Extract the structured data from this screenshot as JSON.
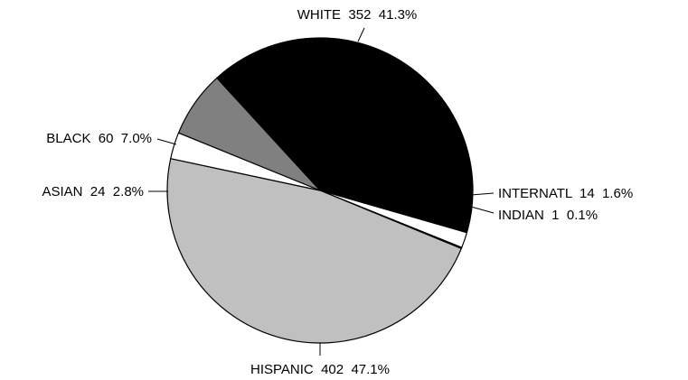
{
  "chart_data": {
    "type": "pie",
    "title": "",
    "slices": [
      {
        "category": "WHITE",
        "count": 352,
        "percent": "41.3%",
        "color": "#000000"
      },
      {
        "category": "INTERNATL",
        "count": 14,
        "percent": "1.6%",
        "color": "#ffffff"
      },
      {
        "category": "INDIAN",
        "count": 1,
        "percent": "0.1%",
        "color": "#000000"
      },
      {
        "category": "HISPANIC",
        "count": 402,
        "percent": "47.1%",
        "color": "#c0c0c0"
      },
      {
        "category": "ASIAN",
        "count": 24,
        "percent": "2.8%",
        "color": "#ffffff"
      },
      {
        "category": "BLACK",
        "count": 60,
        "percent": "7.0%",
        "color": "#808080"
      }
    ],
    "labels": [
      {
        "text": "WHITE  352  41.3%"
      },
      {
        "text": "INTERNATL  14  1.6%"
      },
      {
        "text": "INDIAN  1  0.1%"
      },
      {
        "text": "HISPANIC  402  47.1%"
      },
      {
        "text": "ASIAN  24  2.8%"
      },
      {
        "text": "BLACK  60  7.0%"
      }
    ]
  }
}
